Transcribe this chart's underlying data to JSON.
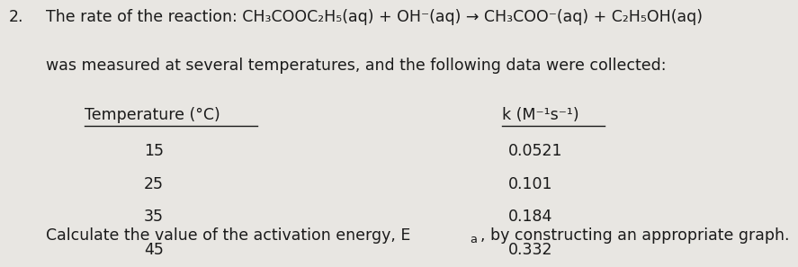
{
  "number": "2.",
  "line1": "The rate of the reaction: CH₃COOC₂H₅(aq) + OH⁻(aq) → CH₃COO⁻(aq) + C₂H₅OH(aq)",
  "line2": "was measured at several temperatures, and the following data were collected:",
  "col1_header": "Temperature (°C)",
  "col2_header": "k (M⁻¹s⁻¹)",
  "temperatures": [
    "15",
    "25",
    "35",
    "45"
  ],
  "k_values": [
    "0.0521",
    "0.101",
    "0.184",
    "0.332"
  ],
  "footer_pre": "Calculate the value of the activation energy, E",
  "footer_sub": "a",
  "footer_post": ", by constructing an appropriate graph.",
  "bg_color": "#e8e6e2",
  "text_color": "#1a1a1a",
  "font_size": 12.5
}
